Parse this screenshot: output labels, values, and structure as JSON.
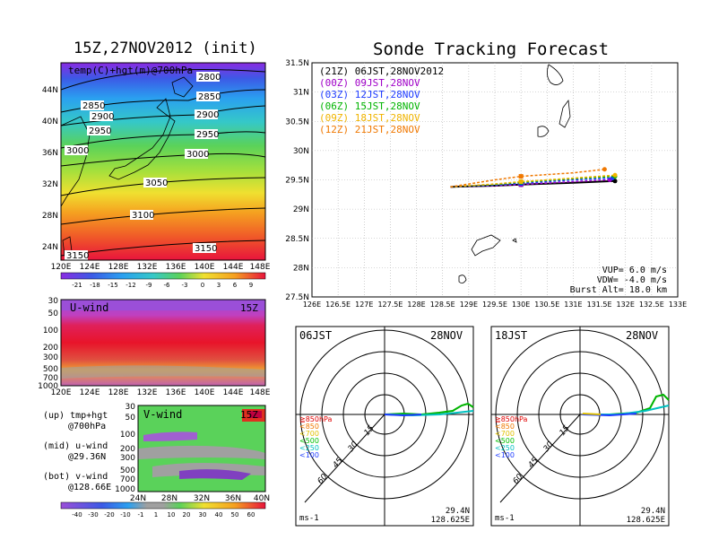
{
  "left_title": "15Z,27NOV2012 (init)",
  "right_title": "Sonde Tracking Forecast",
  "top_map": {
    "label": "temp(C)+hgt(m)@700hPa",
    "lat_ticks": [
      "44N",
      "40N",
      "36N",
      "32N",
      "28N",
      "24N"
    ],
    "lon_ticks": [
      "120E",
      "124E",
      "128E",
      "132E",
      "136E",
      "140E",
      "144E",
      "148E"
    ],
    "contours": [
      "2800",
      "2850",
      "2850",
      "2900",
      "2900",
      "2950",
      "2950",
      "3000",
      "3000",
      "3050",
      "3100",
      "3150",
      "3150"
    ],
    "colorbar": [
      "-21",
      "-18",
      "-15",
      "-12",
      "-9",
      "-6",
      "-3",
      "0",
      "3",
      "6",
      "9"
    ]
  },
  "uwind": {
    "label": "U-wind",
    "time": "15Z",
    "p_ticks": [
      "30",
      "50",
      "100",
      "200",
      "300",
      "500",
      "700",
      "1000"
    ],
    "lon_ticks": [
      "120E",
      "124E",
      "128E",
      "132E",
      "136E",
      "140E",
      "144E",
      "148E"
    ]
  },
  "vwind": {
    "label": "V-wind",
    "time": "15Z",
    "p_ticks": [
      "30",
      "50",
      "100",
      "200",
      "300",
      "500",
      "700",
      "1000"
    ],
    "lat_ticks": [
      "24N",
      "28N",
      "32N",
      "36N",
      "40N"
    ],
    "colorbar": [
      "-40",
      "-30",
      "-20",
      "-10",
      "-1",
      "1",
      "10",
      "20",
      "30",
      "40",
      "50",
      "60"
    ]
  },
  "notes": [
    {
      "line1": "(up) tmp+hgt",
      "line2": "@700hPa"
    },
    {
      "line1": "(mid) u-wind",
      "line2": "@29.36N"
    },
    {
      "line1": "(bot) v-wind",
      "line2": "@128.66E"
    }
  ],
  "track_legend": [
    {
      "text": "(21Z) 06JST,28NOV2012",
      "color": "#000000"
    },
    {
      "text": "(00Z) 09JST,28NOV",
      "color": "#a000c8"
    },
    {
      "text": "(03Z) 12JST,28NOV",
      "color": "#1e3cff"
    },
    {
      "text": "(06Z) 15JST,28NOV",
      "color": "#00b400"
    },
    {
      "text": "(09Z) 18JST,28NOV",
      "color": "#f0b400"
    },
    {
      "text": "(12Z) 21JST,28NOV",
      "color": "#f07800"
    }
  ],
  "track_info": [
    "VUP=  6.0 m/s",
    "VDW= -4.0 m/s",
    "Burst Alt= 18.0 km"
  ],
  "chart_data": [
    {
      "type": "line",
      "title": "Sonde Tracking Forecast",
      "xlim": [
        126,
        133
      ],
      "ylim": [
        27.5,
        31.5
      ],
      "x_ticks": [
        "126E",
        "126.5E",
        "127E",
        "127.5E",
        "128E",
        "128.5E",
        "129E",
        "129.5E",
        "130E",
        "130.5E",
        "131E",
        "131.5E",
        "132E",
        "132.5E",
        "133E"
      ],
      "y_ticks": [
        "27.5N",
        "28N",
        "28.5N",
        "29N",
        "29.5N",
        "30N",
        "30.5N",
        "31N",
        "31.5N"
      ],
      "series": [
        {
          "name": "(21Z) 06JST,28NOV2012",
          "x": [
            128.65,
            129.5,
            130.0,
            131.0,
            131.8
          ],
          "y": [
            29.38,
            29.4,
            29.42,
            29.45,
            29.48
          ]
        },
        {
          "name": "(00Z) 09JST,28NOV",
          "x": [
            128.65,
            129.5,
            130.0,
            131.0,
            131.7
          ],
          "y": [
            29.38,
            29.4,
            29.42,
            29.47,
            29.5
          ]
        },
        {
          "name": "(03Z) 12JST,28NOV",
          "x": [
            128.65,
            129.5,
            130.0,
            131.0,
            131.75
          ],
          "y": [
            29.38,
            29.41,
            29.44,
            29.5,
            29.53
          ]
        },
        {
          "name": "(06Z) 15JST,28NOV",
          "x": [
            128.65,
            129.5,
            130.0,
            131.0,
            131.8
          ],
          "y": [
            29.38,
            29.42,
            29.46,
            29.52,
            29.56
          ]
        },
        {
          "name": "(09Z) 18JST,28NOV",
          "x": [
            128.65,
            129.5,
            130.0,
            131.0,
            131.8
          ],
          "y": [
            29.38,
            29.43,
            29.47,
            29.53,
            29.58
          ]
        },
        {
          "name": "(12Z) 21JST,28NOV",
          "x": [
            128.65,
            129.5,
            130.0,
            131.0,
            131.6
          ],
          "y": [
            29.38,
            29.5,
            29.56,
            29.62,
            29.68
          ]
        }
      ]
    }
  ],
  "polar": [
    {
      "time": "06JST",
      "date": "28NOV",
      "rings": [
        "15",
        "30",
        "45",
        "60"
      ],
      "lat": "29.4N",
      "lon": "128.625E",
      "unit": "ms-1",
      "levels": [
        {
          "text": "≧850hPa",
          "color": "#e00000"
        },
        {
          "text": "<850",
          "color": "#f07800"
        },
        {
          "text": "<700",
          "color": "#e0c000"
        },
        {
          "text": "<500",
          "color": "#00c000"
        },
        {
          "text": "<250",
          "color": "#00c0c0"
        },
        {
          "text": "<100",
          "color": "#1e3cff"
        }
      ]
    },
    {
      "time": "18JST",
      "date": "28NOV",
      "rings": [
        "15",
        "30",
        "45",
        "60"
      ],
      "lat": "29.4N",
      "lon": "128.625E",
      "unit": "ms-1",
      "levels": [
        {
          "text": "≧850hPa",
          "color": "#e00000"
        },
        {
          "text": "<850",
          "color": "#f07800"
        },
        {
          "text": "<700",
          "color": "#e0c000"
        },
        {
          "text": "<500",
          "color": "#00c000"
        },
        {
          "text": "<250",
          "color": "#00c0c0"
        },
        {
          "text": "<100",
          "color": "#1e3cff"
        }
      ]
    }
  ]
}
